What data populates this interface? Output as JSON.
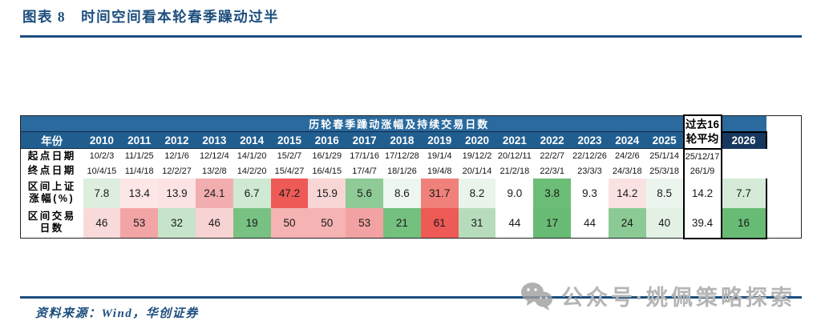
{
  "title": "图表 8　时间空间看本轮春季躁动过半",
  "table": {
    "header": "历轮春季躁动涨幅及持续交易日数",
    "year_label": "年份",
    "row_labels": {
      "start": "起点日期",
      "end": "终点日期",
      "gain1": "区间上证",
      "gain2": "涨幅(%)",
      "days1": "区间交易",
      "days2": "日数"
    },
    "years": [
      {
        "year": "2010",
        "start": "10/2/3",
        "end": "10/4/15",
        "gain": "7.8",
        "gain_bg": "#ddeedf",
        "days": "46",
        "days_bg": "#f9dada"
      },
      {
        "year": "2011",
        "start": "11/1/25",
        "end": "11/4/18",
        "gain": "13.4",
        "gain_bg": "#fce6e6",
        "days": "53",
        "days_bg": "#f3a5a5"
      },
      {
        "year": "2012",
        "start": "12/1/6",
        "end": "12/2/27",
        "gain": "13.9",
        "gain_bg": "#fce3e3",
        "days": "32",
        "days_bg": "#c6e4c9"
      },
      {
        "year": "2013",
        "start": "12/12/4",
        "end": "13/2/8",
        "gain": "24.1",
        "gain_bg": "#f2aeae",
        "days": "46",
        "days_bg": "#f8d3d3"
      },
      {
        "year": "2014",
        "start": "14/1/20",
        "end": "14/2/20",
        "gain": "6.7",
        "gain_bg": "#cfe9d2",
        "days": "19",
        "days_bg": "#77c182"
      },
      {
        "year": "2015",
        "start": "15/2/7",
        "end": "15/4/27",
        "gain": "47.2",
        "gain_bg": "#ee5a56",
        "days": "50",
        "days_bg": "#f5b3b3"
      },
      {
        "year": "2016",
        "start": "16/1/29",
        "end": "16/4/15",
        "gain": "15.9",
        "gain_bg": "#f8d6d6",
        "days": "50",
        "days_bg": "#f5b3b3"
      },
      {
        "year": "2017",
        "start": "17/1/16",
        "end": "17/4/7",
        "gain": "5.6",
        "gain_bg": "#8fcb97",
        "days": "53",
        "days_bg": "#f2a2a2"
      },
      {
        "year": "2018",
        "start": "17/12/28",
        "end": "18/1/26",
        "gain": "8.6",
        "gain_bg": "#eef7ef",
        "days": "21",
        "days_bg": "#74c07f"
      },
      {
        "year": "2019",
        "start": "19/1/4",
        "end": "19/4/8",
        "gain": "31.7",
        "gain_bg": "#f0817a",
        "days": "61",
        "days_bg": "#ee5a56"
      },
      {
        "year": "2020",
        "start": "19/12/2",
        "end": "20/1/14",
        "gain": "8.2",
        "gain_bg": "#e9f4eb",
        "days": "31",
        "days_bg": "#b7dcbc"
      },
      {
        "year": "2021",
        "start": "20/12/11",
        "end": "21/2/18",
        "gain": "9.0",
        "gain_bg": "#fefefe",
        "days": "44",
        "days_bg": "#ffffff"
      },
      {
        "year": "2022",
        "start": "22/2/7",
        "end": "22/3/1",
        "gain": "3.8",
        "gain_bg": "#6cbd77",
        "days": "17",
        "days_bg": "#68bb74"
      },
      {
        "year": "2023",
        "start": "22/12/26",
        "end": "23/3/3",
        "gain": "9.3",
        "gain_bg": "#ffffff",
        "days": "44",
        "days_bg": "#ffffff"
      },
      {
        "year": "2024",
        "start": "24/2/6",
        "end": "24/3/18",
        "gain": "14.2",
        "gain_bg": "#fbe2e2",
        "days": "24",
        "days_bg": "#8cca95"
      },
      {
        "year": "2025",
        "start": "25/1/14",
        "end": "25/3/18",
        "gain": "8.5",
        "gain_bg": "#ebf5ed",
        "days": "40",
        "days_bg": "#e3f1e5"
      }
    ],
    "average": {
      "label1": "过去16",
      "label2": "轮平均",
      "gain": "14.2",
      "gain_bg": "#ffffff",
      "days": "39.4",
      "days_bg": "#ffffff"
    },
    "current": {
      "year": "2026",
      "start": "25/12/17",
      "end": "26/1/9",
      "gain": "7.7",
      "gain_bg": "#d5ebd8",
      "days": "16",
      "days_bg": "#68bb74"
    }
  },
  "source": "资料来源：Wind，华创证券",
  "watermark": {
    "icon": "wechat-icon",
    "text": "公众号·姚佩策略探索"
  },
  "colors": {
    "accent_blue": "#1d4e7e",
    "band_blue": "#2a6a9e",
    "year_row_blue": "#215e90",
    "navy_2026": "#17375e",
    "heat_red_max": "#ee5a56",
    "heat_green_max": "#68bb74"
  }
}
